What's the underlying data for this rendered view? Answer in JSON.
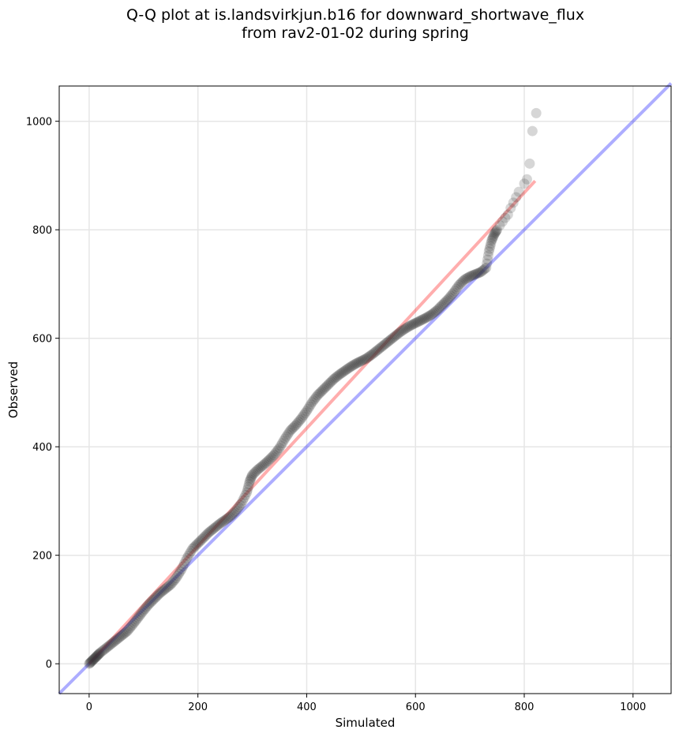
{
  "chart_data": {
    "type": "scatter",
    "title_line1": "Q-Q plot at is.landsvirkjun.b16 for downward_shortwave_flux",
    "title_line2": "from rav2-01-02 during spring",
    "xlabel": "Simulated",
    "ylabel": "Observed",
    "xlim": [
      -55,
      1070
    ],
    "ylim": [
      -55,
      1065
    ],
    "xticks": [
      0,
      200,
      400,
      600,
      800,
      1000
    ],
    "yticks": [
      0,
      200,
      400,
      600,
      800,
      1000
    ],
    "grid": true,
    "reference_line": {
      "color": "#0000ff",
      "from": [
        -55,
        -55
      ],
      "to": [
        1070,
        1070
      ]
    },
    "fit_line": {
      "color": "#ff0000",
      "from": [
        0,
        0
      ],
      "to": [
        820,
        890
      ]
    },
    "quantile_curve": [
      [
        0,
        0
      ],
      [
        5,
        5
      ],
      [
        10,
        10
      ],
      [
        15,
        15
      ],
      [
        20,
        20
      ],
      [
        30,
        28
      ],
      [
        40,
        36
      ],
      [
        50,
        44
      ],
      [
        60,
        52
      ],
      [
        70,
        60
      ],
      [
        80,
        72
      ],
      [
        90,
        85
      ],
      [
        100,
        98
      ],
      [
        110,
        110
      ],
      [
        120,
        120
      ],
      [
        130,
        130
      ],
      [
        140,
        138
      ],
      [
        150,
        146
      ],
      [
        160,
        158
      ],
      [
        170,
        174
      ],
      [
        180,
        195
      ],
      [
        190,
        212
      ],
      [
        200,
        222
      ],
      [
        210,
        232
      ],
      [
        220,
        242
      ],
      [
        230,
        250
      ],
      [
        240,
        258
      ],
      [
        250,
        265
      ],
      [
        260,
        272
      ],
      [
        270,
        282
      ],
      [
        280,
        296
      ],
      [
        290,
        316
      ],
      [
        295,
        336
      ],
      [
        300,
        348
      ],
      [
        310,
        358
      ],
      [
        320,
        366
      ],
      [
        330,
        375
      ],
      [
        340,
        385
      ],
      [
        350,
        398
      ],
      [
        360,
        415
      ],
      [
        370,
        430
      ],
      [
        380,
        440
      ],
      [
        390,
        452
      ],
      [
        400,
        466
      ],
      [
        410,
        482
      ],
      [
        420,
        495
      ],
      [
        430,
        505
      ],
      [
        440,
        515
      ],
      [
        450,
        525
      ],
      [
        460,
        533
      ],
      [
        470,
        540
      ],
      [
        480,
        547
      ],
      [
        490,
        553
      ],
      [
        500,
        558
      ],
      [
        510,
        563
      ],
      [
        520,
        570
      ],
      [
        530,
        578
      ],
      [
        540,
        586
      ],
      [
        550,
        594
      ],
      [
        560,
        602
      ],
      [
        570,
        610
      ],
      [
        580,
        617
      ],
      [
        590,
        623
      ],
      [
        600,
        628
      ],
      [
        610,
        633
      ],
      [
        620,
        638
      ],
      [
        630,
        644
      ],
      [
        640,
        652
      ],
      [
        650,
        662
      ],
      [
        660,
        672
      ],
      [
        670,
        684
      ],
      [
        680,
        698
      ],
      [
        690,
        708
      ],
      [
        700,
        714
      ],
      [
        710,
        718
      ],
      [
        720,
        722
      ],
      [
        730,
        730
      ],
      [
        735,
        760
      ],
      [
        740,
        780
      ],
      [
        745,
        792
      ],
      [
        750,
        800
      ],
      [
        755,
        808
      ],
      [
        760,
        815
      ],
      [
        765,
        822
      ],
      [
        770,
        828
      ],
      [
        775,
        840
      ],
      [
        780,
        850
      ],
      [
        785,
        860
      ],
      [
        790,
        870
      ],
      [
        800,
        885
      ],
      [
        805,
        893
      ],
      [
        810,
        922
      ],
      [
        815,
        982
      ],
      [
        822,
        1015
      ]
    ]
  },
  "colors": {
    "point": "#333333",
    "grid": "#e6e6e6"
  }
}
